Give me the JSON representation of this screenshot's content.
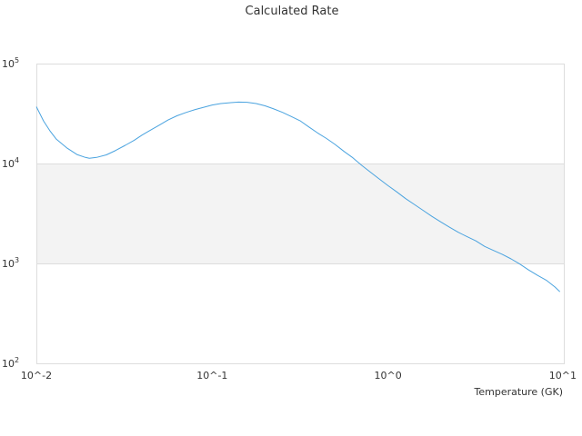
{
  "chart_data": {
    "type": "line",
    "title": "Calculated Rate",
    "xlabel": "Temperature (GK)",
    "ylabel": "",
    "x_scale": "log",
    "y_scale": "log",
    "xlim": [
      0.01,
      10
    ],
    "ylim": [
      100,
      100000
    ],
    "x_ticks": [
      "10^-2",
      "10^-1",
      "10^0",
      "10^1"
    ],
    "y_ticks": [
      "10^2",
      "10^3",
      "10^4",
      "10^5"
    ],
    "y_ticks_html": [
      "10<sup>2</sup>",
      "10<sup>3</sup>",
      "10<sup>4</sup>",
      "10<sup>5</sup>"
    ],
    "shaded_band": [
      1000,
      10000
    ],
    "grid": true,
    "legend": "none",
    "series": [
      {
        "color": "#4aa3df",
        "x": [
          0.01,
          0.011,
          0.012,
          0.013,
          0.015,
          0.017,
          0.019,
          0.02,
          0.022,
          0.025,
          0.028,
          0.032,
          0.036,
          0.04,
          0.045,
          0.05,
          0.056,
          0.063,
          0.071,
          0.08,
          0.09,
          0.1,
          0.112,
          0.126,
          0.141,
          0.158,
          0.178,
          0.2,
          0.224,
          0.251,
          0.282,
          0.316,
          0.355,
          0.398,
          0.447,
          0.501,
          0.562,
          0.631,
          0.708,
          0.794,
          0.891,
          1.0,
          1.12,
          1.26,
          1.41,
          1.58,
          1.78,
          2.0,
          2.24,
          2.51,
          2.82,
          3.16,
          3.55,
          3.98,
          4.47,
          5.01,
          5.62,
          6.31,
          7.08,
          7.94,
          8.91,
          9.5
        ],
        "y": [
          37000,
          26500,
          21000,
          17500,
          14200,
          12300,
          11500,
          11300,
          11500,
          12200,
          13400,
          15200,
          17100,
          19300,
          21800,
          24200,
          27200,
          30000,
          32400,
          34700,
          36600,
          38500,
          39800,
          40600,
          41200,
          41000,
          39800,
          37800,
          35200,
          32500,
          29500,
          26800,
          23200,
          20200,
          17800,
          15500,
          13200,
          11400,
          9600,
          8200,
          7000,
          6000,
          5200,
          4450,
          3900,
          3400,
          2950,
          2600,
          2300,
          2050,
          1850,
          1680,
          1480,
          1350,
          1230,
          1110,
          985,
          860,
          760,
          680,
          580,
          520
        ]
      }
    ]
  }
}
